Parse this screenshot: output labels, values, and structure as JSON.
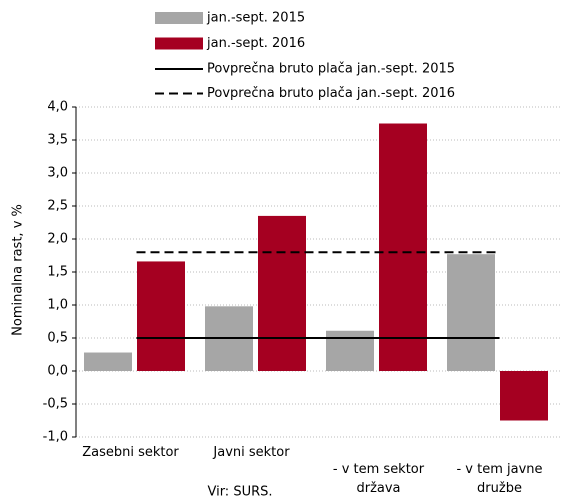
{
  "chart_data": {
    "type": "bar",
    "y_label": "Nominalna rast, v %",
    "source": "Vir: SURS.",
    "categories": [
      "Zasebni sektor",
      "Javni sektor",
      "- v tem sektor država",
      "- v tem javne družbe"
    ],
    "series": [
      {
        "name": "jan.-sept. 2015",
        "color": "#a6a6a6",
        "values": [
          0.28,
          0.98,
          0.61,
          1.77
        ]
      },
      {
        "name": "jan.-sept. 2016",
        "color": "#a50021",
        "values": [
          1.66,
          2.35,
          3.75,
          -0.75
        ]
      }
    ],
    "reference_lines": [
      {
        "name": "Povprečna bruto plača jan.-sept. 2015",
        "value": 0.5,
        "dash": "solid"
      },
      {
        "name": "Povprečna bruto plača jan.-sept. 2016",
        "value": 1.8,
        "dash": "dashed"
      }
    ],
    "ylim": [
      -1,
      4
    ],
    "yticks": [
      {
        "value": -1,
        "label": "-1,0"
      },
      {
        "value": -0.5,
        "label": "-0,5"
      },
      {
        "value": 0,
        "label": "0,0"
      },
      {
        "value": 0.5,
        "label": "0,5"
      },
      {
        "value": 1,
        "label": "1,0"
      },
      {
        "value": 1.5,
        "label": "1,5"
      },
      {
        "value": 2,
        "label": "2,0"
      },
      {
        "value": 2.5,
        "label": "2,5"
      },
      {
        "value": 3,
        "label": "3,0"
      },
      {
        "value": 3.5,
        "label": "3,5"
      },
      {
        "value": 4,
        "label": "4,0"
      }
    ],
    "grid": true
  }
}
